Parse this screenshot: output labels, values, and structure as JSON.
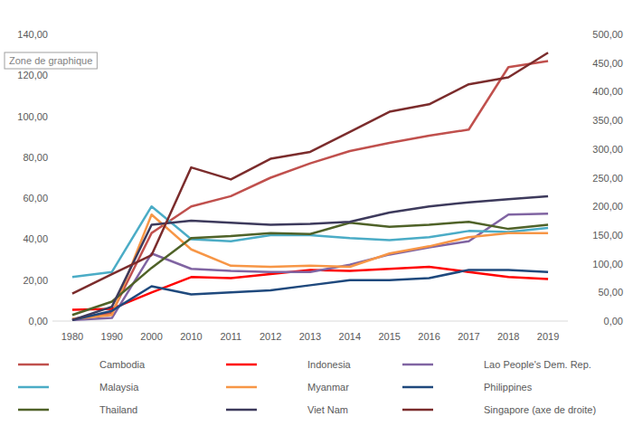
{
  "chart_data": {
    "type": "line",
    "annotation": "Zone de graphique",
    "categories": [
      "1980",
      "1990",
      "2000",
      "2010",
      "2011",
      "2012",
      "2013",
      "2014",
      "2015",
      "2016",
      "2017",
      "2018",
      "2019"
    ],
    "ylim": [
      0,
      140
    ],
    "yticks": [
      {
        "value": 0,
        "label": "0,00"
      },
      {
        "value": 20,
        "label": "20,00"
      },
      {
        "value": 40,
        "label": "40,00"
      },
      {
        "value": 60,
        "label": "60,00"
      },
      {
        "value": 80,
        "label": "80,00"
      },
      {
        "value": 100,
        "label": "100,00"
      },
      {
        "value": 120,
        "label": "120,00"
      },
      {
        "value": 140,
        "label": "140,00"
      }
    ],
    "y2lim": [
      0,
      500
    ],
    "y2ticks": [
      {
        "value": 0,
        "label": "0,00"
      },
      {
        "value": 50,
        "label": "50,00"
      },
      {
        "value": 100,
        "label": "100,00"
      },
      {
        "value": 150,
        "label": "150,00"
      },
      {
        "value": 200,
        "label": "200,00"
      },
      {
        "value": 250,
        "label": "250,00"
      },
      {
        "value": 300,
        "label": "300,00"
      },
      {
        "value": 350,
        "label": "350,00"
      },
      {
        "value": 400,
        "label": "400,00"
      },
      {
        "value": 450,
        "label": "450,00"
      },
      {
        "value": 500,
        "label": "500,00"
      }
    ],
    "grid": false,
    "legend": "bottom",
    "series": [
      {
        "name": "Cambodia",
        "color": "#c0504d",
        "values": [
          1,
          4,
          43,
          56,
          61,
          70,
          77,
          83,
          87,
          90.5,
          93.5,
          124,
          127
        ]
      },
      {
        "name": "Indonesia",
        "color": "#ff0000",
        "values": [
          5.5,
          6,
          14,
          21.5,
          21,
          23,
          25,
          24.5,
          25.5,
          26.5,
          24,
          21.5,
          20.5
        ]
      },
      {
        "name": "Lao People's Dem. Rep.",
        "color": "#8064a2",
        "values": [
          0.5,
          1.5,
          33,
          25.5,
          24.5,
          24,
          24,
          27.5,
          32.5,
          36,
          39,
          52,
          52.5
        ]
      },
      {
        "name": "Malaysia",
        "color": "#4bacc6",
        "values": [
          21.5,
          24,
          56,
          40,
          39,
          42,
          42,
          40.5,
          39.5,
          41,
          44,
          43.5,
          45.5
        ]
      },
      {
        "name": "Myanmar",
        "color": "#f79646",
        "values": [
          1,
          3,
          52,
          35,
          27,
          26.5,
          27,
          26.5,
          33,
          36.5,
          41,
          43,
          43
        ]
      },
      {
        "name": "Philippines",
        "color": "#1f497d",
        "values": [
          0.5,
          5,
          17,
          13,
          14,
          15,
          17.5,
          20,
          20,
          21,
          25,
          25,
          24
        ]
      },
      {
        "name": "Thailand",
        "color": "#4f6228",
        "values": [
          3,
          9.5,
          26,
          40.5,
          41.5,
          43,
          42.5,
          48,
          46,
          47,
          48.5,
          45,
          47
        ]
      },
      {
        "name": "Viet Nam",
        "color": "#3d3a5c",
        "values": [
          0.5,
          7,
          47,
          49,
          48,
          47,
          47.5,
          48.5,
          53,
          56,
          58,
          59.5,
          61
        ]
      },
      {
        "name": "Singapore (axe de droite)",
        "color": "#7b2c2c",
        "axis": "y2",
        "values": [
          48,
          82,
          115,
          268,
          247,
          283,
          295,
          330,
          365,
          378,
          413,
          425,
          468
        ]
      }
    ]
  }
}
